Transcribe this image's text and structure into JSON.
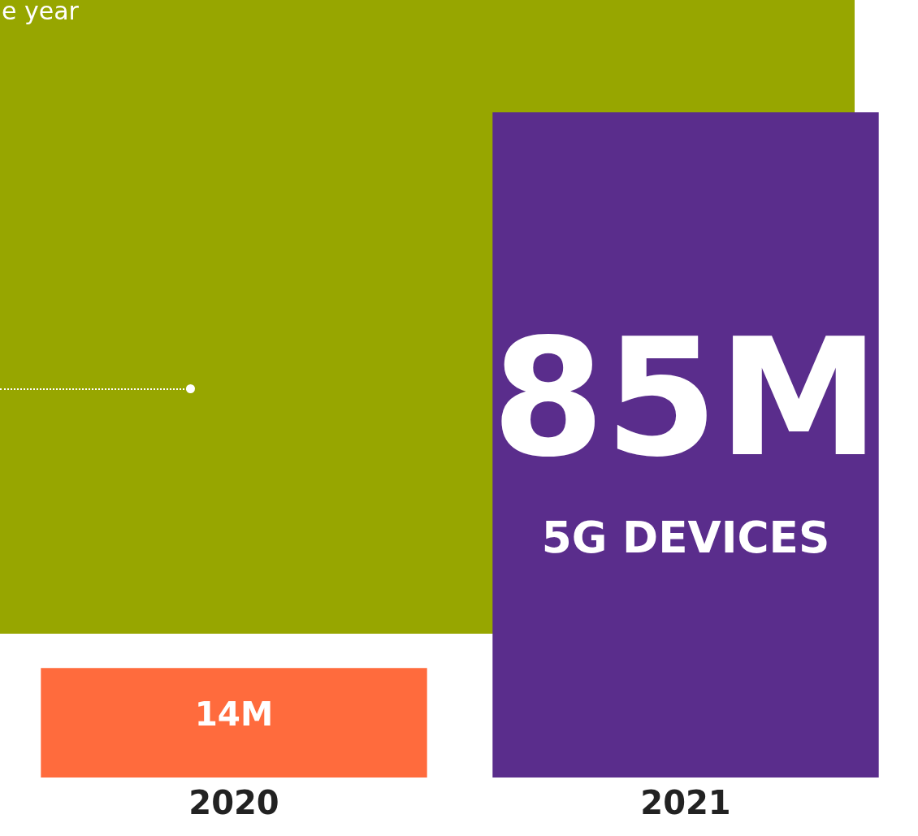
{
  "chart_data": {
    "type": "bar",
    "categories": [
      "2020",
      "2021"
    ],
    "values": [
      14,
      85
    ],
    "colors": [
      "#ff6b3d",
      "#5a2d8c"
    ],
    "value_labels": [
      "14M",
      "85M"
    ],
    "annotations": [
      "5G DEVICES",
      "e year"
    ],
    "grid": false,
    "legend": false
  }
}
